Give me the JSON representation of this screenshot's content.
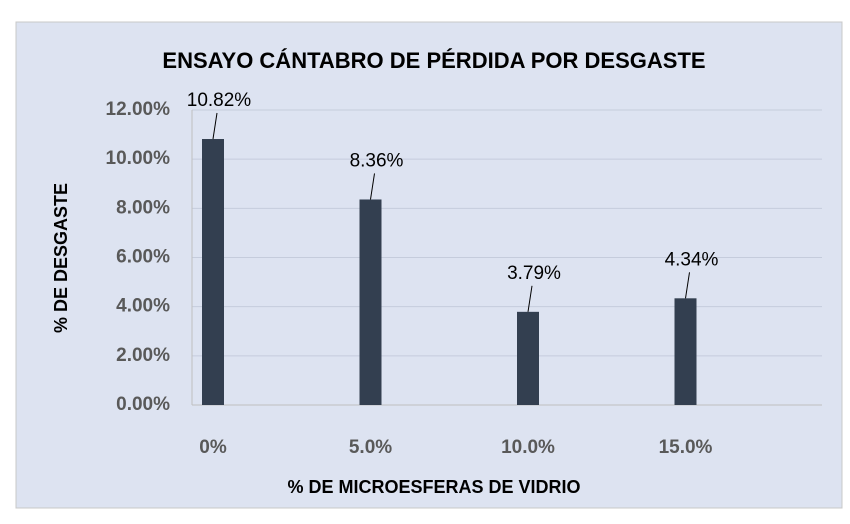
{
  "chart_data": {
    "type": "bar",
    "title": "ENSAYO CÁNTABRO DE PÉRDIDA POR DESGASTE",
    "x_label": "% DE MICROESFERAS DE VIDRIO",
    "y_label": "% DE DESGASTE",
    "categories": [
      "0%",
      "5.0%",
      "10.0%",
      "15.0%"
    ],
    "values": [
      10.82,
      8.36,
      3.79,
      4.34
    ],
    "value_labels": [
      "10.82%",
      "8.36%",
      "3.79%",
      "4.34%"
    ],
    "color": "#333f50",
    "ylim": [
      0,
      12
    ],
    "yticks": [
      {
        "value": 0,
        "label": "0.00%"
      },
      {
        "value": 2,
        "label": "2.00%"
      },
      {
        "value": 4,
        "label": "4.00%"
      },
      {
        "value": 6,
        "label": "6.00%"
      },
      {
        "value": 8,
        "label": "8.00%"
      },
      {
        "value": 10,
        "label": "10.00%"
      },
      {
        "value": 12,
        "label": "12.00%"
      }
    ],
    "grid": true
  }
}
